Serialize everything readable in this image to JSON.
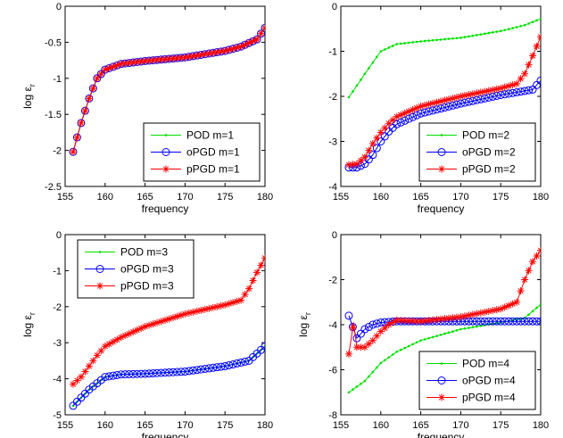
{
  "chart_data": [
    {
      "type": "line",
      "xlabel": "frequency",
      "ylabel": "log ε",
      "ylabel_sub": "r",
      "xlim": [
        155,
        180
      ],
      "ylim": [
        -2.5,
        0
      ],
      "xticks": [
        155,
        160,
        165,
        170,
        175,
        180
      ],
      "yticks": [
        -2.5,
        -2,
        -1.5,
        -1,
        -0.5,
        0
      ],
      "ytick_labels": [
        "-2.5",
        "-2",
        "-1.5",
        "-1",
        "-0.5",
        "0"
      ],
      "legend_position": "bottom-right",
      "grid": false,
      "series": [
        {
          "name": "POD m=1",
          "color": "#00dd00",
          "marker": "dot",
          "points": [
            [
              156,
              -2.02
            ],
            [
              157,
              -1.62
            ],
            [
              158,
              -1.28
            ],
            [
              159,
              -1.0
            ],
            [
              160,
              -0.88
            ],
            [
              162,
              -0.8
            ],
            [
              165,
              -0.76
            ],
            [
              170,
              -0.71
            ],
            [
              175,
              -0.62
            ],
            [
              177,
              -0.56
            ],
            [
              179,
              -0.46
            ],
            [
              180,
              -0.3
            ]
          ]
        },
        {
          "name": "oPGD m=1",
          "color": "#0000ff",
          "marker": "circle",
          "points": [
            [
              156,
              -2.02
            ],
            [
              157,
              -1.62
            ],
            [
              158,
              -1.28
            ],
            [
              159,
              -1.0
            ],
            [
              160,
              -0.88
            ],
            [
              162,
              -0.8
            ],
            [
              165,
              -0.76
            ],
            [
              170,
              -0.71
            ],
            [
              175,
              -0.62
            ],
            [
              177,
              -0.56
            ],
            [
              179,
              -0.46
            ],
            [
              180,
              -0.3
            ]
          ]
        },
        {
          "name": "pPGD m=1",
          "color": "#ff0000",
          "marker": "star",
          "points": [
            [
              156,
              -2.02
            ],
            [
              157,
              -1.62
            ],
            [
              158,
              -1.28
            ],
            [
              159,
              -1.0
            ],
            [
              160,
              -0.88
            ],
            [
              162,
              -0.8
            ],
            [
              165,
              -0.76
            ],
            [
              170,
              -0.71
            ],
            [
              175,
              -0.62
            ],
            [
              177,
              -0.56
            ],
            [
              179,
              -0.46
            ],
            [
              180,
              -0.3
            ]
          ]
        }
      ]
    },
    {
      "type": "line",
      "xlabel": "frequency",
      "ylabel": "",
      "ylabel_sub": "",
      "xlim": [
        155,
        180
      ],
      "ylim": [
        -4,
        0
      ],
      "xticks": [
        155,
        160,
        165,
        170,
        175,
        180
      ],
      "yticks": [
        -4,
        -3,
        -2,
        -1,
        0
      ],
      "ytick_labels": [
        "-4",
        "-3",
        "-2",
        "-1",
        "0"
      ],
      "legend_position": "bottom-right",
      "grid": false,
      "series": [
        {
          "name": "POD m=2",
          "color": "#00dd00",
          "marker": "dot",
          "points": [
            [
              156,
              -2.02
            ],
            [
              158,
              -1.5
            ],
            [
              160,
              -1.0
            ],
            [
              162,
              -0.84
            ],
            [
              165,
              -0.78
            ],
            [
              170,
              -0.7
            ],
            [
              175,
              -0.55
            ],
            [
              178,
              -0.42
            ],
            [
              180,
              -0.28
            ]
          ]
        },
        {
          "name": "oPGD m=2",
          "color": "#0000ff",
          "marker": "circle",
          "points": [
            [
              156,
              -3.58
            ],
            [
              157,
              -3.58
            ],
            [
              158,
              -3.5
            ],
            [
              159,
              -3.3
            ],
            [
              160,
              -3.0
            ],
            [
              161,
              -2.78
            ],
            [
              162,
              -2.62
            ],
            [
              165,
              -2.38
            ],
            [
              170,
              -2.16
            ],
            [
              175,
              -1.97
            ],
            [
              178,
              -1.88
            ],
            [
              179,
              -1.85
            ],
            [
              180,
              -1.65
            ]
          ]
        },
        {
          "name": "pPGD m=2",
          "color": "#ff0000",
          "marker": "star",
          "points": [
            [
              156,
              -3.52
            ],
            [
              157,
              -3.5
            ],
            [
              158,
              -3.35
            ],
            [
              159,
              -3.05
            ],
            [
              160,
              -2.8
            ],
            [
              161,
              -2.6
            ],
            [
              162,
              -2.45
            ],
            [
              165,
              -2.22
            ],
            [
              170,
              -2.0
            ],
            [
              175,
              -1.82
            ],
            [
              177,
              -1.72
            ],
            [
              178,
              -1.5
            ],
            [
              179,
              -1.1
            ],
            [
              180,
              -0.68
            ]
          ]
        }
      ]
    },
    {
      "type": "line",
      "xlabel": "frequency",
      "ylabel": "log ε",
      "ylabel_sub": "r",
      "xlim": [
        155,
        180
      ],
      "ylim": [
        -5,
        0
      ],
      "xticks": [
        155,
        160,
        165,
        170,
        175,
        180
      ],
      "yticks": [
        -5,
        -4,
        -3,
        -2,
        -1,
        0
      ],
      "ytick_labels": [
        "-5",
        "-4",
        "-3",
        "-2",
        "-1",
        "0"
      ],
      "legend_position": "top-left",
      "grid": false,
      "series": [
        {
          "name": "POD m=3",
          "color": "#00dd00",
          "marker": "dot",
          "points": [
            [
              156,
              -4.75
            ],
            [
              158,
              -4.3
            ],
            [
              160,
              -3.95
            ],
            [
              162,
              -3.88
            ],
            [
              165,
              -3.86
            ],
            [
              170,
              -3.8
            ],
            [
              175,
              -3.65
            ],
            [
              178,
              -3.5
            ],
            [
              180,
              -3.1
            ]
          ]
        },
        {
          "name": "oPGD m=3",
          "color": "#0000ff",
          "marker": "circle",
          "points": [
            [
              156,
              -4.75
            ],
            [
              158,
              -4.3
            ],
            [
              160,
              -3.95
            ],
            [
              162,
              -3.88
            ],
            [
              165,
              -3.86
            ],
            [
              170,
              -3.8
            ],
            [
              175,
              -3.65
            ],
            [
              178,
              -3.5
            ],
            [
              180,
              -3.1
            ]
          ]
        },
        {
          "name": "pPGD m=3",
          "color": "#ff0000",
          "marker": "star",
          "points": [
            [
              156,
              -4.15
            ],
            [
              157,
              -3.95
            ],
            [
              158,
              -3.65
            ],
            [
              159,
              -3.35
            ],
            [
              160,
              -3.1
            ],
            [
              162,
              -2.85
            ],
            [
              165,
              -2.55
            ],
            [
              170,
              -2.2
            ],
            [
              175,
              -1.95
            ],
            [
              177,
              -1.82
            ],
            [
              178,
              -1.5
            ],
            [
              179,
              -1.05
            ],
            [
              180,
              -0.65
            ]
          ]
        }
      ]
    },
    {
      "type": "line",
      "xlabel": "frequency",
      "ylabel": "log ε",
      "ylabel_sub": "r",
      "xlim": [
        155,
        180
      ],
      "ylim": [
        -8,
        0
      ],
      "xticks": [
        155,
        160,
        165,
        170,
        175,
        180
      ],
      "yticks": [
        -8,
        -6,
        -4,
        -2,
        0
      ],
      "ytick_labels": [
        "-8",
        "-6",
        "-4",
        "-2",
        "0"
      ],
      "legend_position": "bottom-right",
      "grid": false,
      "series": [
        {
          "name": "POD m=4",
          "color": "#00dd00",
          "marker": "dot",
          "points": [
            [
              156,
              -7.0
            ],
            [
              158,
              -6.5
            ],
            [
              160,
              -5.7
            ],
            [
              162,
              -5.2
            ],
            [
              165,
              -4.7
            ],
            [
              170,
              -4.2
            ],
            [
              175,
              -3.9
            ],
            [
              178,
              -3.7
            ],
            [
              180,
              -3.1
            ]
          ]
        },
        {
          "name": "oPGD m=4",
          "color": "#0000ff",
          "marker": "circle",
          "points": [
            [
              156,
              -3.6
            ],
            [
              157,
              -4.6
            ],
            [
              158,
              -4.2
            ],
            [
              159,
              -4.0
            ],
            [
              160,
              -3.9
            ],
            [
              162,
              -3.85
            ],
            [
              165,
              -3.85
            ],
            [
              170,
              -3.85
            ],
            [
              175,
              -3.85
            ],
            [
              180,
              -3.85
            ]
          ]
        },
        {
          "name": "pPGD m=4",
          "color": "#ff0000",
          "marker": "star",
          "points": [
            [
              156,
              -5.3
            ],
            [
              156.6,
              -3.9
            ],
            [
              157,
              -5.0
            ],
            [
              158,
              -5.0
            ],
            [
              159,
              -4.7
            ],
            [
              160,
              -4.3
            ],
            [
              161,
              -4.0
            ],
            [
              162,
              -3.8
            ],
            [
              165,
              -3.85
            ],
            [
              170,
              -3.65
            ],
            [
              175,
              -3.3
            ],
            [
              177,
              -3.0
            ],
            [
              178,
              -2.0
            ],
            [
              179,
              -1.2
            ],
            [
              180,
              -0.7
            ]
          ]
        }
      ]
    }
  ]
}
